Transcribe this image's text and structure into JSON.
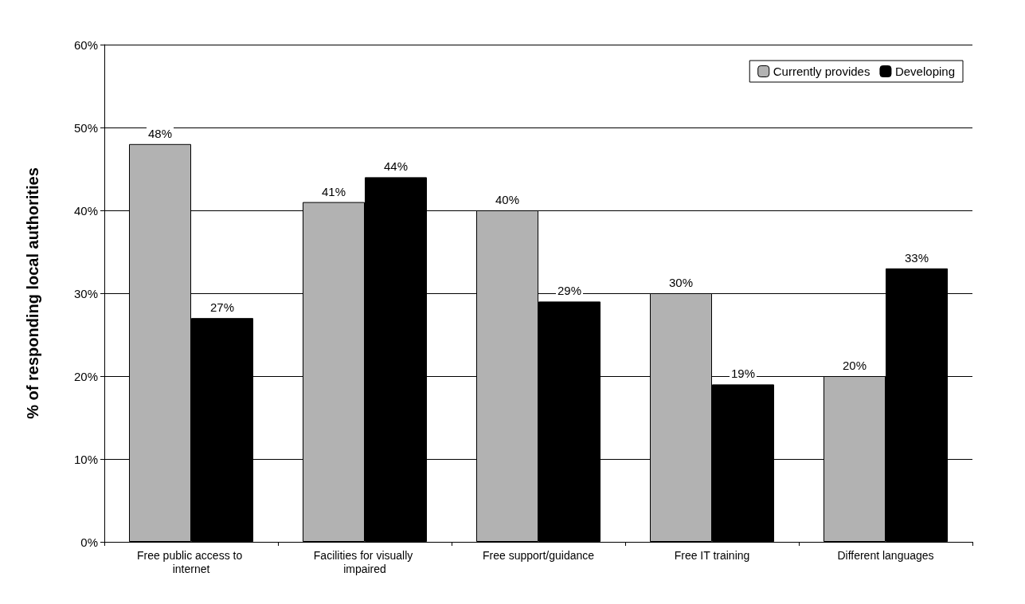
{
  "chart_data": {
    "type": "bar",
    "ylabel": "% of responding local authorities",
    "categories": [
      "Free public access to internet",
      "Facilities for visually impaired",
      "Free support/guidance",
      "Free IT training",
      "Different languages"
    ],
    "series": [
      {
        "name": "Currently provides",
        "color": "#b2b2b2",
        "values": [
          48,
          41,
          40,
          30,
          20
        ],
        "value_labels": [
          "48%",
          "41%",
          "40%",
          "30%",
          "20%"
        ]
      },
      {
        "name": "Developing",
        "color": "#000000",
        "values": [
          27,
          44,
          29,
          19,
          33
        ],
        "value_labels": [
          "27%",
          "44%",
          "29%",
          "19%",
          "33%"
        ]
      }
    ],
    "ylim": [
      0,
      60
    ],
    "yticks": [
      {
        "value": 0,
        "label": "0%"
      },
      {
        "value": 10,
        "label": "10%"
      },
      {
        "value": 20,
        "label": "20%"
      },
      {
        "value": 30,
        "label": "30%"
      },
      {
        "value": 40,
        "label": "40%"
      },
      {
        "value": 50,
        "label": "50%"
      },
      {
        "value": 60,
        "label": "60%"
      }
    ],
    "grid": "y",
    "legend": "top right"
  }
}
